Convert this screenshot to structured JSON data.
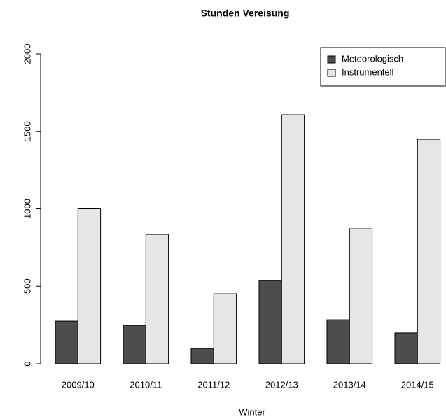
{
  "chart_data": {
    "type": "bar",
    "title": "Stunden Vereisung",
    "x_label": "Winter",
    "categories": [
      "2009/10",
      "2010/11",
      "2011/12",
      "2012/13",
      "2013/14",
      "2014/15"
    ],
    "series": [
      {
        "name": "Meteorologisch",
        "color": "#4d4d4d",
        "values": [
          275,
          248,
          99,
          537,
          284,
          199
        ]
      },
      {
        "name": "Instrumentell",
        "color": "#e6e6e6",
        "values": [
          1000,
          835,
          451,
          1607,
          871,
          1449
        ]
      }
    ],
    "ylim": [
      0,
      2000
    ],
    "yticks": [
      0,
      500,
      1000,
      1500,
      2000
    ],
    "legend": "top-right"
  }
}
